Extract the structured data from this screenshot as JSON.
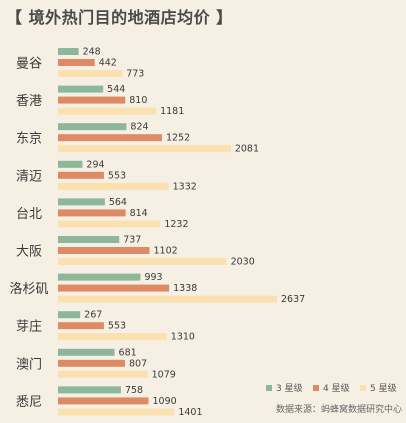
{
  "chart_data": {
    "type": "bar",
    "orientation": "horizontal",
    "title": "【 境外热门目的地酒店均价 】",
    "categories": [
      "曼谷",
      "香港",
      "东京",
      "清迈",
      "台北",
      "大阪",
      "洛杉矶",
      "芽庄",
      "澳门",
      "悉尼"
    ],
    "series": [
      {
        "name": "3 星级",
        "color": "#8cb79b",
        "values": [
          248,
          544,
          824,
          294,
          564,
          737,
          993,
          267,
          681,
          758
        ]
      },
      {
        "name": "4 星级",
        "color": "#de8a64",
        "values": [
          442,
          810,
          1252,
          553,
          814,
          1102,
          1338,
          553,
          807,
          1090
        ]
      },
      {
        "name": "5 星级",
        "color": "#fbe0b0",
        "values": [
          773,
          1181,
          2081,
          1332,
          1232,
          2030,
          2637,
          1310,
          1079,
          1401
        ]
      }
    ],
    "xlim": [
      0,
      2637
    ],
    "grid": false,
    "legend_position": "bottom-right",
    "source": "数据来源：蚂蜂窝数据研究中心"
  }
}
